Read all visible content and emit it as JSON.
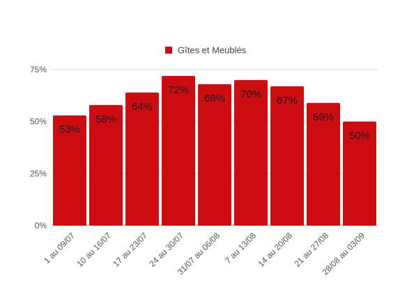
{
  "chart_data": {
    "type": "bar",
    "categories": [
      "1 au 09/07",
      "10 au 16/07",
      "17 au 23/07",
      "24 au 30/07",
      "31/07 au 06/08",
      "7 au 13/08",
      "14 au 20/08",
      "21 au 27/08",
      "28/08 au 03/09"
    ],
    "series": [
      {
        "name": "Gîtes et Meublés",
        "values": [
          53,
          58,
          64,
          72,
          68,
          70,
          67,
          59,
          50
        ],
        "labels": [
          "53%",
          "58%",
          "64%",
          "72%",
          "68%",
          "70%",
          "67%",
          "59%",
          "50%"
        ],
        "color": "#cc0d12"
      }
    ],
    "yticks": [
      0,
      25,
      50,
      75
    ],
    "ytick_labels": [
      "0%",
      "25%",
      "50%",
      "75%"
    ],
    "ylim": [
      0,
      75
    ],
    "grid": true,
    "gridline_color": "#d9d9d9",
    "axis_color": "#bdbdbd",
    "legend_position": "top-center"
  }
}
